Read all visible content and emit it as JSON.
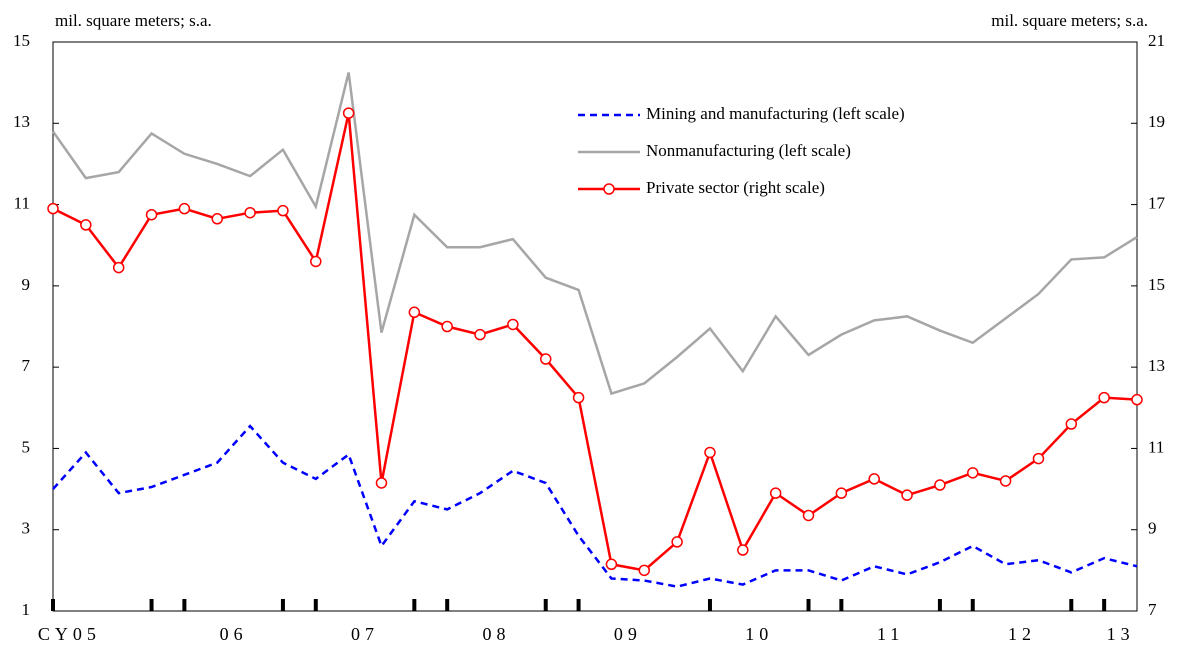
{
  "chart_data": {
    "type": "line",
    "y_label": "mil. square meters; s.a.",
    "y2_label": "mil. square meters; s.a.",
    "categories": [
      "CY05",
      null,
      null,
      null,
      null,
      "06",
      null,
      null,
      null,
      "07",
      null,
      null,
      null,
      "08",
      null,
      null,
      null,
      "09",
      null,
      null,
      null,
      "10",
      null,
      null,
      null,
      "11",
      null,
      null,
      null,
      "12",
      null,
      null,
      "13",
      null
    ],
    "ylim": [
      1,
      15
    ],
    "yticks": [
      1,
      3,
      5,
      7,
      9,
      11,
      13,
      15
    ],
    "y2lim": [
      7,
      21
    ],
    "y2ticks": [
      7,
      9,
      11,
      13,
      15,
      17,
      19,
      21
    ],
    "legend": "top-center",
    "series": [
      {
        "name": "Mining and manufacturing (left scale)",
        "color": "#0000ff",
        "style": "dashed",
        "axis": "y",
        "values": [
          4.0,
          4.9,
          3.9,
          4.05,
          4.35,
          4.65,
          5.55,
          4.65,
          4.25,
          4.85,
          2.6,
          3.7,
          3.5,
          3.9,
          4.45,
          4.15,
          2.85,
          1.8,
          1.75,
          1.6,
          1.8,
          1.65,
          2.0,
          2.0,
          1.75,
          2.1,
          1.9,
          2.2,
          2.6,
          2.15,
          2.25,
          1.95,
          2.3,
          2.1
        ]
      },
      {
        "name": "Nonmanufacturing (left scale)",
        "color": "#a6a6a6",
        "style": "solid",
        "axis": "y",
        "values": [
          12.8,
          11.65,
          11.8,
          12.75,
          12.25,
          12.0,
          11.7,
          12.35,
          10.95,
          14.25,
          7.85,
          10.75,
          9.95,
          9.95,
          10.15,
          9.2,
          8.9,
          6.35,
          6.6,
          7.25,
          7.95,
          6.9,
          8.25,
          7.3,
          7.8,
          8.15,
          8.25,
          7.9,
          7.6,
          8.2,
          8.8,
          9.65,
          9.7,
          10.2
        ]
      },
      {
        "name": "Private sector (right scale)",
        "color": "#ff0000",
        "style": "solid",
        "marker": "circle",
        "axis": "y2",
        "values": [
          16.9,
          16.5,
          15.45,
          16.75,
          16.9,
          16.65,
          16.8,
          16.85,
          15.6,
          19.25,
          10.15,
          14.35,
          14.0,
          13.8,
          14.05,
          13.2,
          12.25,
          8.15,
          8.0,
          8.7,
          10.9,
          8.5,
          9.9,
          9.35,
          9.9,
          10.25,
          9.85,
          10.1,
          10.4,
          10.2,
          10.75,
          11.6,
          12.25,
          12.2
        ]
      }
    ]
  }
}
